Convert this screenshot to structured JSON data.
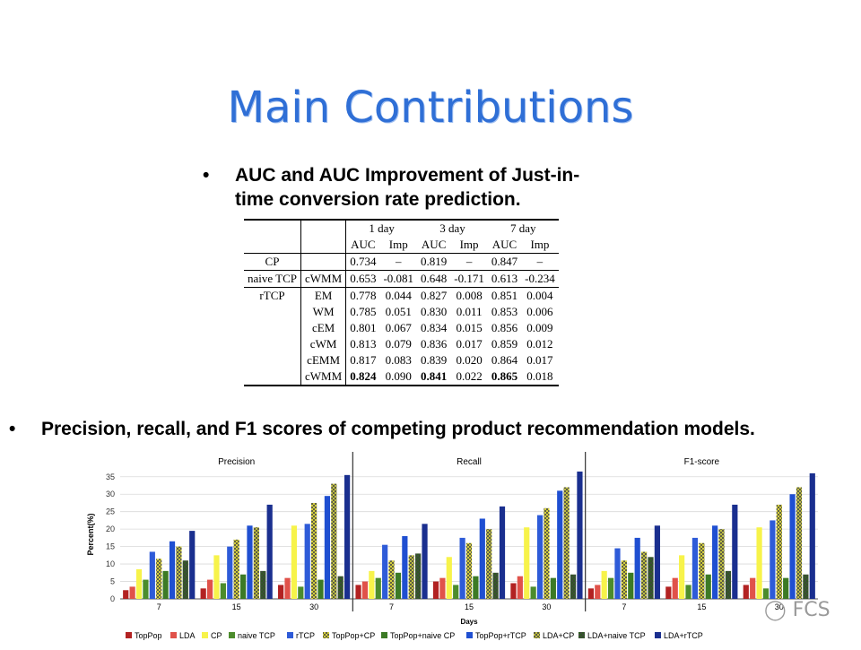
{
  "slide": {
    "title": "Main Contributions",
    "bullet1": "AUC and AUC Improvement of Just-in-time conversion rate prediction.",
    "bullet2": "Precision, recall, and F1 scores of competing product  recommendation models.",
    "bullet_symbol": "•",
    "watermark": "FCS"
  },
  "auc_table": {
    "groups": [
      "1 day",
      "3 day",
      "7 day"
    ],
    "subheaders": [
      "AUC",
      "Imp",
      "AUC",
      "Imp",
      "AUC",
      "Imp"
    ],
    "rows": [
      {
        "group": "CP",
        "model": "",
        "values": [
          "0.734",
          "–",
          "0.819",
          "–",
          "0.847",
          "–"
        ]
      },
      {
        "group": "naive TCP",
        "model": "cWMM",
        "values": [
          "0.653",
          "-0.081",
          "0.648",
          "-0.171",
          "0.613",
          "-0.234"
        ]
      },
      {
        "group": "rTCP",
        "model": "EM",
        "values": [
          "0.778",
          "0.044",
          "0.827",
          "0.008",
          "0.851",
          "0.004"
        ]
      },
      {
        "group": "",
        "model": "WM",
        "values": [
          "0.785",
          "0.051",
          "0.830",
          "0.011",
          "0.853",
          "0.006"
        ]
      },
      {
        "group": "",
        "model": "cEM",
        "values": [
          "0.801",
          "0.067",
          "0.834",
          "0.015",
          "0.856",
          "0.009"
        ]
      },
      {
        "group": "",
        "model": "cWM",
        "values": [
          "0.813",
          "0.079",
          "0.836",
          "0.017",
          "0.859",
          "0.012"
        ]
      },
      {
        "group": "",
        "model": "cEMM",
        "values": [
          "0.817",
          "0.083",
          "0.839",
          "0.020",
          "0.864",
          "0.017"
        ]
      },
      {
        "group": "",
        "model": "cWMM",
        "values": [
          "0.824",
          "0.090",
          "0.841",
          "0.022",
          "0.865",
          "0.018"
        ],
        "bold_auc": true
      }
    ]
  },
  "chart_data": {
    "type": "bar",
    "ylabel": "Percent(%)",
    "xlabel": "Days",
    "ylim": [
      0,
      37
    ],
    "yticks": [
      0,
      5,
      10,
      15,
      20,
      25,
      30,
      35
    ],
    "categories": [
      "7",
      "15",
      "30"
    ],
    "legend_position": "bottom",
    "series_names": [
      "TopPop",
      "LDA",
      "CP",
      "naive TCP",
      "rTCP",
      "TopPop+CP",
      "TopPop+naive CP",
      "TopPop+rTCP",
      "LDA+CP",
      "LDA+naive TCP",
      "LDA+rTCP"
    ],
    "series_colors": [
      "#b22222",
      "#e0524a",
      "#f7f34a",
      "#4c8c2c",
      "#2e5bd8",
      "#f2ec3a",
      "#3c7a25",
      "#1f4fd1",
      "#d8d840",
      "#2a5e1a",
      "#1a2f8f"
    ],
    "hatched_series": [
      5,
      8,
      9
    ],
    "panels": [
      {
        "title": "Precision",
        "values": [
          [
            2.5,
            3.5,
            8.5,
            5.5,
            13.5,
            11.5,
            8,
            16.5,
            15,
            11,
            19.5
          ],
          [
            3,
            5.5,
            12.5,
            4.5,
            15,
            17,
            7,
            21,
            20.5,
            8,
            27
          ],
          [
            4,
            6,
            21,
            3.5,
            21.5,
            27.5,
            5.5,
            29.5,
            33,
            6.5,
            35.5
          ]
        ]
      },
      {
        "title": "Recall",
        "values": [
          [
            4,
            5,
            8,
            6,
            15.5,
            11,
            7.5,
            18,
            12.5,
            13,
            21.5
          ],
          [
            5,
            6,
            12,
            4,
            17.5,
            16,
            6.5,
            23,
            20,
            7.5,
            26.5
          ],
          [
            4.5,
            6.5,
            20.5,
            3.5,
            24,
            26,
            6,
            31,
            32,
            7,
            36.5
          ]
        ]
      },
      {
        "title": "F1-score",
        "values": [
          [
            3,
            4,
            8,
            6,
            14.5,
            11,
            7.5,
            17.5,
            13.5,
            12,
            21
          ],
          [
            3.5,
            6,
            12.5,
            4,
            17.5,
            16,
            7,
            21,
            20,
            8,
            27
          ],
          [
            4,
            6,
            20.5,
            3,
            22.5,
            27,
            6,
            30,
            32,
            7,
            36
          ]
        ]
      }
    ]
  }
}
